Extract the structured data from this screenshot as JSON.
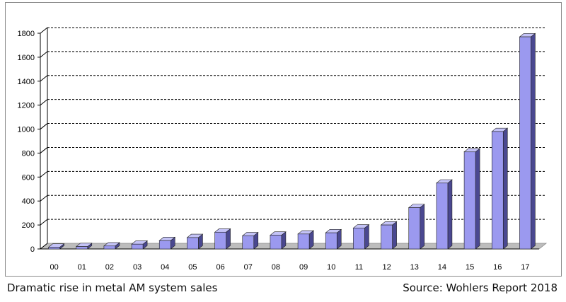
{
  "caption": "Dramatic rise in metal AM system sales",
  "source": "Source: Wohlers Report 2018",
  "chart_data": {
    "type": "bar",
    "title": "",
    "xlabel": "",
    "ylabel": "",
    "categories": [
      "00",
      "01",
      "02",
      "03",
      "04",
      "05",
      "06",
      "07",
      "08",
      "09",
      "10",
      "11",
      "12",
      "13",
      "14",
      "15",
      "16",
      "17"
    ],
    "values": [
      15,
      20,
      25,
      40,
      70,
      95,
      140,
      110,
      115,
      125,
      135,
      175,
      200,
      345,
      550,
      810,
      980,
      1770
    ],
    "ylim": [
      0,
      1800
    ],
    "yticks": [
      0,
      200,
      400,
      600,
      800,
      1000,
      1200,
      1400,
      1600,
      1800
    ],
    "grid": true,
    "three_d": true,
    "colors": {
      "bar_front": "#9b99ef",
      "bar_side": "#4a4890",
      "bar_top": "#c4c3f7",
      "floor": "#bdbdbd",
      "grid": "#000000"
    }
  }
}
